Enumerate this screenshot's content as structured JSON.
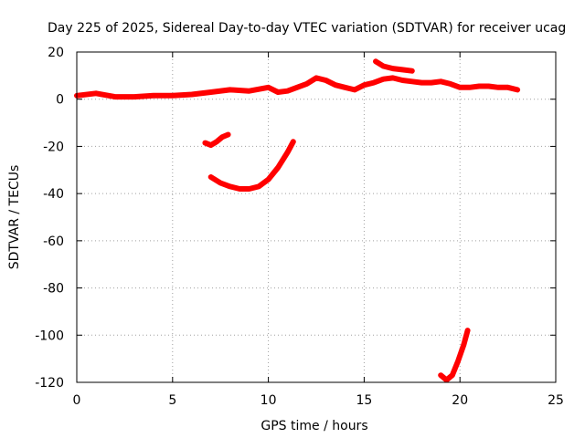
{
  "chart_data": {
    "type": "line",
    "title": "Day 225 of 2025, Sidereal Day-to-day VTEC variation (SDTVAR) for receiver ucag",
    "xlabel": "GPS time / hours",
    "ylabel": "SDTVAR / TECUs",
    "xlim": [
      0,
      25
    ],
    "ylim": [
      -120,
      20
    ],
    "xticks": [
      0,
      5,
      10,
      15,
      20,
      25
    ],
    "yticks": [
      20,
      0,
      -20,
      -40,
      -60,
      -80,
      -100,
      -120
    ],
    "grid": true,
    "series": [
      {
        "color": "#ff0000",
        "x": [
          0.0,
          1.0,
          2.0,
          3.0,
          4.0,
          5.0,
          6.0,
          7.0,
          8.0,
          9.0,
          10.0,
          10.5,
          11.0,
          11.5,
          12.0,
          12.5,
          13.0,
          13.5,
          14.0,
          14.5,
          15.0,
          15.5,
          16.0,
          16.5,
          17.0,
          17.5,
          18.0,
          18.5,
          19.0,
          19.5,
          20.0,
          20.5,
          21.0,
          21.5,
          22.0,
          22.5,
          23.0
        ],
        "y": [
          1.5,
          2.5,
          1.0,
          1.0,
          1.5,
          1.5,
          2.0,
          3.0,
          4.0,
          3.5,
          5.0,
          3.0,
          3.5,
          5.0,
          6.5,
          9.0,
          8.0,
          6.0,
          5.0,
          4.0,
          6.0,
          7.0,
          8.5,
          9.0,
          8.0,
          7.5,
          7.0,
          7.0,
          7.5,
          6.5,
          5.0,
          5.0,
          5.5,
          5.5,
          5.0,
          5.0,
          4.0
        ]
      },
      {
        "color": "#ff0000",
        "x": [
          15.6,
          16.0,
          16.5,
          17.0,
          17.5
        ],
        "y": [
          16.0,
          14.0,
          13.0,
          12.5,
          12.0
        ]
      },
      {
        "color": "#ff0000",
        "x": [
          6.7,
          7.0,
          7.3,
          7.6,
          7.9
        ],
        "y": [
          -18.5,
          -19.5,
          -18.0,
          -16.0,
          -15.0
        ]
      },
      {
        "color": "#ff0000",
        "x": [
          7.0,
          7.5,
          8.0,
          8.5,
          9.0,
          9.5,
          10.0,
          10.5,
          11.0,
          11.3
        ],
        "y": [
          -33.0,
          -35.5,
          -37.0,
          -38.0,
          -38.0,
          -37.0,
          -34.0,
          -29.0,
          -22.5,
          -18.0
        ]
      },
      {
        "color": "#ff0000",
        "x": [
          19.0,
          19.3,
          19.6,
          19.9,
          20.2,
          20.4
        ],
        "y": [
          -117.0,
          -119.0,
          -117.0,
          -111.0,
          -104.0,
          -98.0
        ]
      }
    ]
  }
}
